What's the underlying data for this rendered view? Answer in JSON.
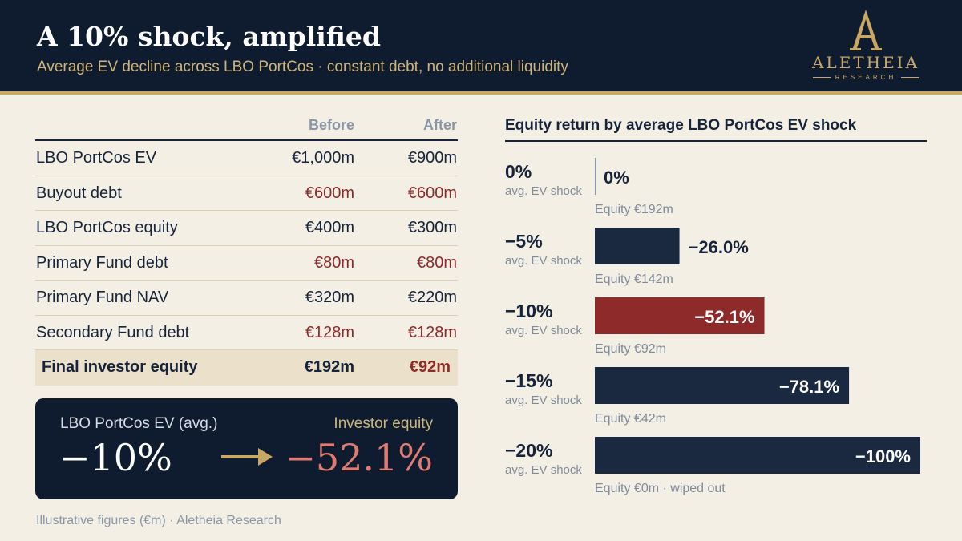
{
  "header": {
    "title": "A 10% shock, amplified",
    "subtitle": "Average EV decline across LBO PortCos · constant debt, no additional liquidity"
  },
  "logo": {
    "icon": "gold-letter-a-icon",
    "name": "ALETHEIA",
    "tagline": "RESEARCH"
  },
  "table": {
    "columns": [
      "Before",
      "After"
    ],
    "rows": [
      {
        "label": "LBO PortCos EV",
        "before": "€1,000m",
        "after": "€900m",
        "kind": "normal"
      },
      {
        "label": "Buyout debt",
        "before": "€600m",
        "after": "€600m",
        "kind": "debt"
      },
      {
        "label": "LBO PortCos equity",
        "before": "€400m",
        "after": "€300m",
        "kind": "normal"
      },
      {
        "label": "Primary Fund debt",
        "before": "€80m",
        "after": "€80m",
        "kind": "debt"
      },
      {
        "label": "Primary Fund NAV",
        "before": "€320m",
        "after": "€220m",
        "kind": "normal"
      },
      {
        "label": "Secondary Fund debt",
        "before": "€128m",
        "after": "€128m",
        "kind": "debt"
      },
      {
        "label": "Final investor equity",
        "before": "€192m",
        "after": "€92m",
        "kind": "total"
      }
    ]
  },
  "callout": {
    "left_label": "LBO PortCos EV (avg.)",
    "left_value": "−10%",
    "right_label": "Investor equity",
    "right_value": "−52.1%",
    "arrow_icon": "right-arrow-icon"
  },
  "footnote": "Illustrative figures (€m)  ·  Aletheia Research",
  "colors": {
    "navy": "#0f1c30",
    "bar_navy": "#1a2840",
    "highlight_red": "#8f2a2a",
    "gold": "#c9a866",
    "background": "#f4efe5"
  },
  "chart_data": {
    "type": "bar",
    "orientation": "horizontal",
    "title": "Equity return by average LBO PortCos EV shock",
    "category_caption": "avg. EV shock",
    "categories": [
      "0%",
      "−5%",
      "−10%",
      "−15%",
      "−20%"
    ],
    "values": [
      0,
      -26.0,
      -52.1,
      -78.1,
      -100
    ],
    "value_labels": [
      "0%",
      "−26.0%",
      "−52.1%",
      "−78.1%",
      "−100%"
    ],
    "equity_notes": [
      "Equity €192m",
      "Equity €142m",
      "Equity €92m",
      "Equity €42m",
      "Equity €0m · wiped out"
    ],
    "highlight_index": 2,
    "xlim": [
      0,
      -100
    ],
    "grid": false,
    "legend": "none"
  }
}
